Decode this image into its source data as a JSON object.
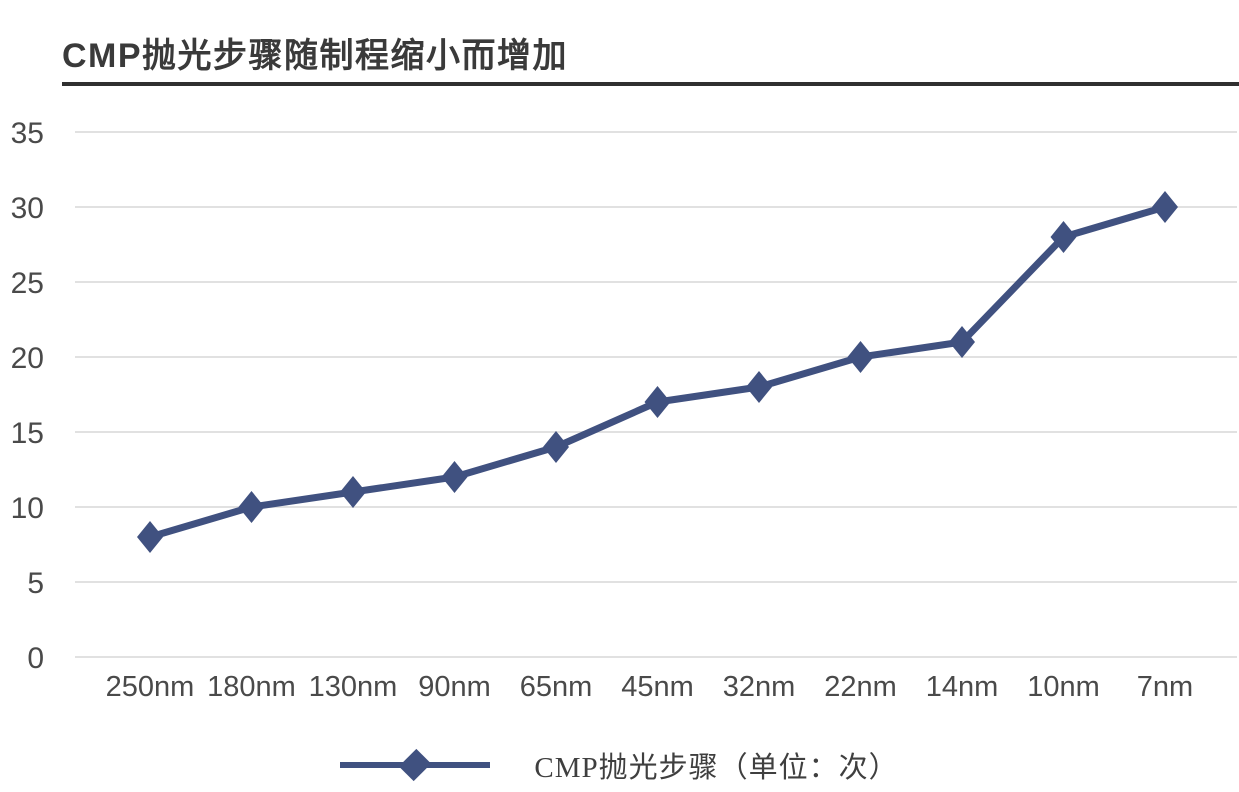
{
  "colors": {
    "series": "#405180",
    "grid": "#e1e1e1",
    "tick_label": "#4a4a4a",
    "title": "#3a3a3a",
    "rule": "#303030",
    "legend_text": "#3f3f3f",
    "background": "#ffffff"
  },
  "chart_data": {
    "type": "line",
    "title": "CMP抛光步骤随制程缩小而增加",
    "categories": [
      "250nm",
      "180nm",
      "130nm",
      "90nm",
      "65nm",
      "45nm",
      "32nm",
      "22nm",
      "14nm",
      "10nm",
      "7nm"
    ],
    "series": [
      {
        "name": "CMP抛光步骤（单位：次）",
        "values": [
          8,
          10,
          11,
          12,
          14,
          17,
          18,
          20,
          21,
          28,
          30
        ]
      }
    ],
    "xlabel": "",
    "ylabel": "",
    "ylim": [
      0,
      35
    ],
    "yticks": [
      0,
      5,
      10,
      15,
      20,
      25,
      30,
      35
    ],
    "grid": true,
    "marker": "diamond",
    "legend_position": "bottom"
  }
}
